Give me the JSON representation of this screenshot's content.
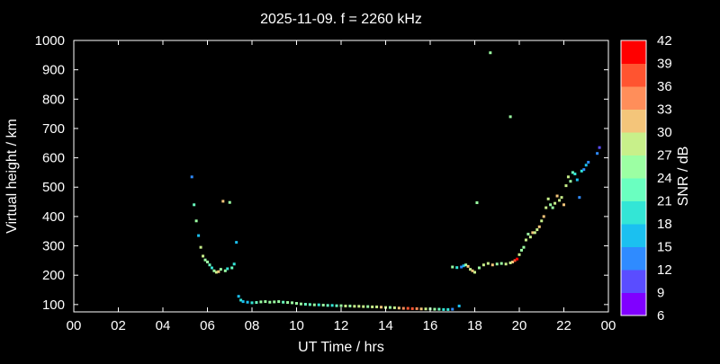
{
  "chart_data": {
    "type": "scatter",
    "title": "2025-11-09. f = 2260 kHz",
    "xlabel": "UT Time / hrs",
    "ylabel": "Virtual height / km",
    "colorbar_label": "SNR / dB",
    "xlim": [
      0,
      24
    ],
    "ylim": [
      75,
      1000
    ],
    "x_ticks": [
      "00",
      "02",
      "04",
      "06",
      "08",
      "10",
      "12",
      "14",
      "16",
      "18",
      "20",
      "22",
      "00"
    ],
    "y_ticks": [
      100,
      200,
      300,
      400,
      500,
      600,
      700,
      800,
      900,
      1000
    ],
    "colorbar": {
      "range": [
        6,
        42
      ],
      "ticks": [
        6,
        9,
        12,
        15,
        18,
        21,
        24,
        27,
        30,
        33,
        36,
        39,
        42
      ],
      "colors": [
        "#8000ff",
        "#5a4dff",
        "#2f8bff",
        "#1bc0f0",
        "#33e6d6",
        "#6affc0",
        "#9cffa3",
        "#c8f08a",
        "#f4c57a",
        "#ff8e5a",
        "#ff5430",
        "#ff0000"
      ]
    },
    "points": [
      [
        5.3,
        535,
        14
      ],
      [
        5.4,
        440,
        22
      ],
      [
        5.5,
        385,
        24
      ],
      [
        5.6,
        335,
        16
      ],
      [
        5.7,
        295,
        27
      ],
      [
        5.8,
        265,
        28
      ],
      [
        5.9,
        252,
        26
      ],
      [
        6.0,
        245,
        24
      ],
      [
        6.1,
        235,
        22
      ],
      [
        6.2,
        225,
        20
      ],
      [
        6.3,
        215,
        24
      ],
      [
        6.4,
        210,
        27
      ],
      [
        6.5,
        212,
        30
      ],
      [
        6.6,
        220,
        26
      ],
      [
        6.7,
        452,
        30
      ],
      [
        6.8,
        215,
        24
      ],
      [
        6.9,
        222,
        20
      ],
      [
        7.0,
        448,
        24
      ],
      [
        7.1,
        225,
        22
      ],
      [
        7.2,
        238,
        18
      ],
      [
        7.3,
        312,
        16
      ],
      [
        7.4,
        128,
        16
      ],
      [
        7.5,
        115,
        18
      ],
      [
        7.6,
        110,
        16
      ],
      [
        7.8,
        108,
        17
      ],
      [
        8.0,
        106,
        20
      ],
      [
        8.2,
        107,
        22
      ],
      [
        8.4,
        109,
        24
      ],
      [
        8.6,
        110,
        24
      ],
      [
        8.8,
        108,
        25
      ],
      [
        9.0,
        109,
        26
      ],
      [
        9.2,
        110,
        24
      ],
      [
        9.4,
        108,
        23
      ],
      [
        9.6,
        107,
        24
      ],
      [
        9.8,
        106,
        26
      ],
      [
        10.0,
        104,
        25
      ],
      [
        10.2,
        102,
        24
      ],
      [
        10.4,
        101,
        22
      ],
      [
        10.6,
        100,
        23
      ],
      [
        10.8,
        99,
        24
      ],
      [
        11.0,
        99,
        20
      ],
      [
        11.2,
        98,
        24
      ],
      [
        11.4,
        97,
        22
      ],
      [
        11.6,
        97,
        20
      ],
      [
        11.8,
        96,
        22
      ],
      [
        12.0,
        96,
        24
      ],
      [
        12.2,
        95,
        27
      ],
      [
        12.4,
        95,
        26
      ],
      [
        12.6,
        94,
        28
      ],
      [
        12.8,
        94,
        27
      ],
      [
        13.0,
        93,
        28
      ],
      [
        13.2,
        93,
        26
      ],
      [
        13.4,
        92,
        27
      ],
      [
        13.6,
        92,
        28
      ],
      [
        13.8,
        91,
        30
      ],
      [
        14.0,
        90,
        27
      ],
      [
        14.2,
        90,
        26
      ],
      [
        14.4,
        89,
        28
      ],
      [
        14.6,
        88,
        30
      ],
      [
        14.8,
        87,
        33
      ],
      [
        15.0,
        87,
        38
      ],
      [
        15.2,
        86,
        36
      ],
      [
        15.4,
        86,
        33
      ],
      [
        15.6,
        85,
        30
      ],
      [
        15.8,
        85,
        28
      ],
      [
        16.0,
        85,
        26
      ],
      [
        16.2,
        84,
        24
      ],
      [
        16.4,
        84,
        22
      ],
      [
        16.6,
        83,
        20
      ],
      [
        16.8,
        83,
        18
      ],
      [
        17.0,
        84,
        14
      ],
      [
        17.3,
        95,
        16
      ],
      [
        17.0,
        228,
        24
      ],
      [
        17.2,
        226,
        18
      ],
      [
        17.4,
        228,
        12
      ],
      [
        17.5,
        232,
        15
      ],
      [
        17.6,
        235,
        24
      ],
      [
        17.7,
        230,
        30
      ],
      [
        17.8,
        220,
        28
      ],
      [
        17.9,
        215,
        30
      ],
      [
        18.0,
        210,
        28
      ],
      [
        18.1,
        447,
        24
      ],
      [
        18.2,
        225,
        26
      ],
      [
        18.4,
        235,
        27
      ],
      [
        18.6,
        240,
        28
      ],
      [
        18.8,
        235,
        30
      ],
      [
        19.0,
        238,
        26
      ],
      [
        19.2,
        240,
        24
      ],
      [
        19.4,
        238,
        27
      ],
      [
        19.6,
        242,
        28
      ],
      [
        19.7,
        245,
        30
      ],
      [
        19.8,
        250,
        36
      ],
      [
        19.9,
        255,
        39
      ],
      [
        20.0,
        270,
        27
      ],
      [
        20.1,
        285,
        26
      ],
      [
        20.2,
        295,
        24
      ],
      [
        20.3,
        320,
        27
      ],
      [
        20.4,
        340,
        26
      ],
      [
        20.5,
        330,
        27
      ],
      [
        20.6,
        345,
        30
      ],
      [
        20.7,
        345,
        28
      ],
      [
        20.8,
        355,
        27
      ],
      [
        20.9,
        365,
        30
      ],
      [
        21.0,
        385,
        27
      ],
      [
        21.1,
        400,
        30
      ],
      [
        21.2,
        430,
        27
      ],
      [
        21.3,
        460,
        28
      ],
      [
        21.4,
        440,
        26
      ],
      [
        21.5,
        430,
        24
      ],
      [
        21.6,
        445,
        27
      ],
      [
        21.7,
        470,
        30
      ],
      [
        21.8,
        455,
        28
      ],
      [
        21.9,
        465,
        27
      ],
      [
        22.0,
        440,
        30
      ],
      [
        22.1,
        505,
        28
      ],
      [
        22.2,
        535,
        27
      ],
      [
        22.3,
        520,
        24
      ],
      [
        22.4,
        550,
        22
      ],
      [
        22.5,
        545,
        20
      ],
      [
        22.6,
        525,
        16
      ],
      [
        22.7,
        465,
        12
      ],
      [
        22.8,
        555,
        18
      ],
      [
        22.9,
        560,
        14
      ],
      [
        23.0,
        575,
        16
      ],
      [
        23.1,
        585,
        12
      ],
      [
        23.5,
        615,
        12
      ],
      [
        23.6,
        635,
        9
      ],
      [
        18.7,
        958,
        24
      ],
      [
        19.6,
        740,
        24
      ]
    ]
  }
}
